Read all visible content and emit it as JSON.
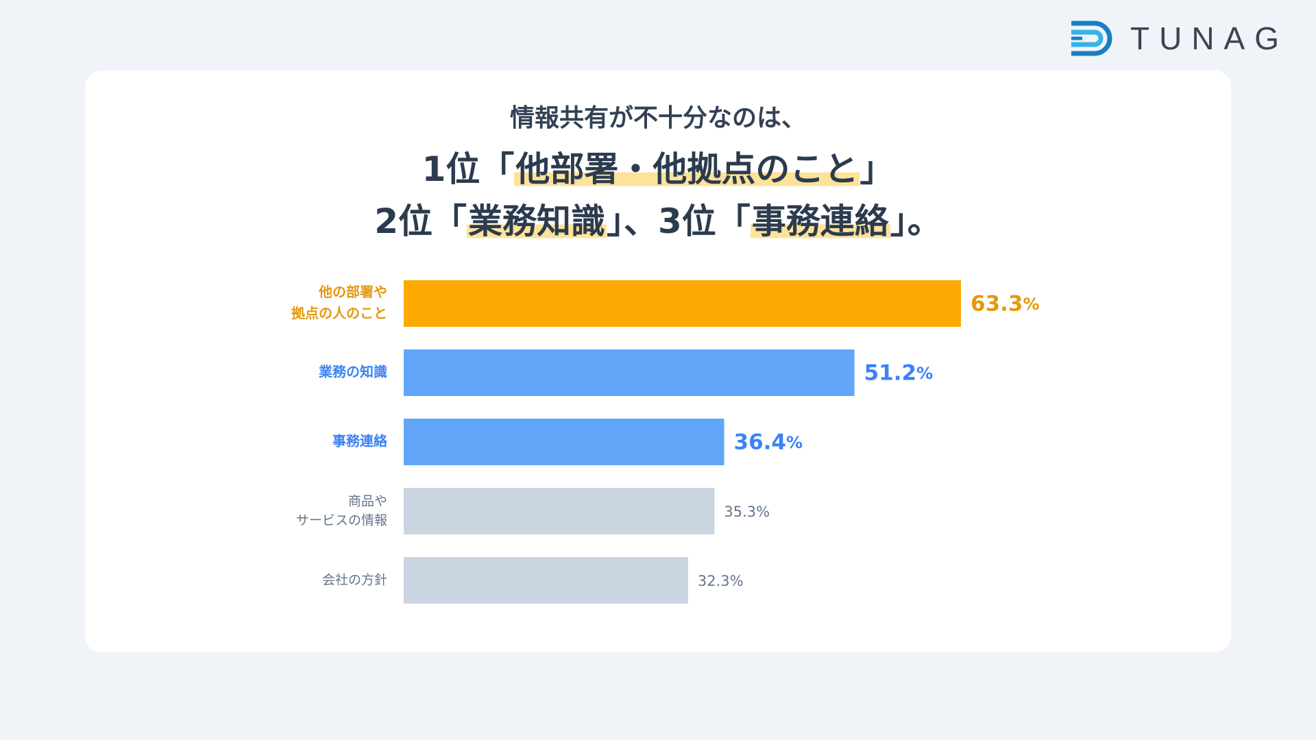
{
  "brand": {
    "name": "TUNAG",
    "logo_icon": "tunag-logo-icon"
  },
  "headline": {
    "line0": "情報共有が不十分なのは、",
    "line1": {
      "pre": "1位「",
      "hl": "他部署・他拠点のこと",
      "post": "」"
    },
    "line2": {
      "pre1": "2位「",
      "hl1": "業務知識",
      "mid": "」、3位「",
      "hl2": "事務連絡",
      "post": "」。"
    }
  },
  "colors": {
    "background": "#f0f4f9",
    "card": "#ffffff",
    "top": "#fdab02",
    "blue": "#61a6f9",
    "gray": "#cbd5e1",
    "highlight": "#fde29a",
    "text_top": "#e5980a",
    "text_blue": "#3b82f6",
    "text_gray": "#64748b"
  },
  "chart_data": {
    "type": "bar",
    "orientation": "horizontal",
    "value_suffix": "%",
    "categories": [
      [
        "他の部署や",
        "拠点の人のこと"
      ],
      [
        "業務の知識"
      ],
      [
        "事務連絡"
      ],
      [
        "商品や",
        "サービスの情報"
      ],
      [
        "会社の方針"
      ]
    ],
    "values": [
      63.3,
      51.2,
      36.4,
      35.3,
      32.3
    ],
    "styles": [
      "top",
      "blue",
      "blue",
      "gray",
      "gray"
    ],
    "xlim": [
      0,
      63.3
    ],
    "grid": false,
    "legend": "none"
  }
}
